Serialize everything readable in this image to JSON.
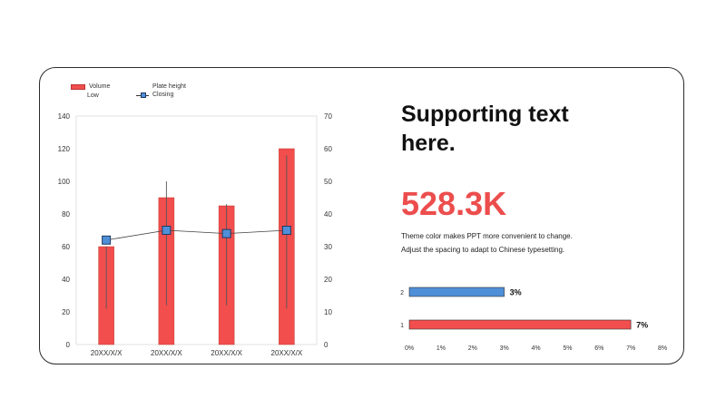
{
  "slide": {
    "title": "Supporting text here.",
    "big_number": "528.3K",
    "description_lines": [
      "Theme color makes PPT more convenient to change.",
      "Adjust the spacing to adapt to Chinese typesetting."
    ]
  },
  "colors": {
    "accent_red": "#f24e4e",
    "accent_blue": "#4f8fd8",
    "text": "#222222"
  },
  "chart_data": [
    {
      "type": "bar",
      "subtype": "stock-volume-combo",
      "legend": [
        "Volume",
        "Plate height",
        "Low",
        "Closing"
      ],
      "categories": [
        "20XX/X/X",
        "20XX/X/X",
        "20XX/X/X",
        "20XX/X/X"
      ],
      "series": [
        {
          "name": "Volume",
          "kind": "bar",
          "axis": "left",
          "values": [
            60,
            90,
            85,
            120
          ]
        },
        {
          "name": "Plate height",
          "kind": "stock-high",
          "axis": "right",
          "values": [
            30,
            50,
            43,
            58
          ]
        },
        {
          "name": "Low",
          "kind": "stock-low",
          "axis": "right",
          "values": [
            11,
            12,
            12,
            11
          ]
        },
        {
          "name": "Closing",
          "kind": "line",
          "axis": "right",
          "values": [
            32,
            35,
            34,
            35
          ]
        }
      ],
      "ylim_left": [
        0,
        140
      ],
      "yticks_left": [
        0,
        20,
        40,
        60,
        80,
        100,
        120,
        140
      ],
      "ylim_right": [
        0,
        70
      ],
      "yticks_right": [
        0,
        10,
        20,
        30,
        40,
        50,
        60,
        70
      ]
    },
    {
      "type": "bar",
      "orientation": "horizontal",
      "categories": [
        "2",
        "1"
      ],
      "values": [
        0.03,
        0.07
      ],
      "value_labels": [
        "3%",
        "7%"
      ],
      "bar_colors": [
        "#4f8fd8",
        "#f24e4e"
      ],
      "xlim": [
        0,
        0.08
      ],
      "xticks": [
        "0%",
        "1%",
        "2%",
        "3%",
        "4%",
        "5%",
        "6%",
        "7%",
        "8%"
      ]
    }
  ]
}
